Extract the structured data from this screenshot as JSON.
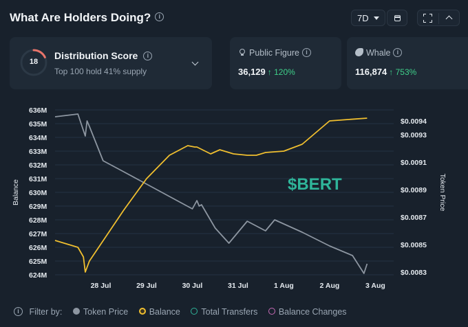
{
  "header": {
    "title": "What Are Holders Doing?",
    "period": "7D"
  },
  "score_card": {
    "score": "18",
    "score_fraction": 0.18,
    "label": "Distribution Score",
    "subtitle": "Top 100 hold 41% supply"
  },
  "public_figure": {
    "label": "Public Figure",
    "value": "36,129",
    "change": "↑ 120%"
  },
  "whale": {
    "label": "Whale",
    "value": "116,874",
    "change": "↑ 753%"
  },
  "chart_data": {
    "type": "line",
    "watermark": "$BERT",
    "x_tick_labels": [
      "28 Jul",
      "29 Jul",
      "30 Jul",
      "31 Jul",
      "1 Aug",
      "2 Aug",
      "3 Aug"
    ],
    "x_tick_index": [
      1,
      2,
      3,
      4,
      5,
      6,
      7
    ],
    "xlim": [
      0,
      7.4
    ],
    "y_left_label": "Balance",
    "y_left_ticks": [
      "624M",
      "625M",
      "626M",
      "627M",
      "628M",
      "629M",
      "630M",
      "631M",
      "632M",
      "633M",
      "634M",
      "635M",
      "636M"
    ],
    "y_left_lim": [
      624,
      636
    ],
    "y_right_label": "Token Price",
    "y_right_ticks": [
      "$0.0083",
      "$0.0085",
      "$0.0087",
      "$0.0089",
      "$0.0091",
      "$0.0093",
      "$0.0094"
    ],
    "y_right_lim": [
      0.00828,
      0.00948
    ],
    "grid": true,
    "series": [
      {
        "name": "Token Price",
        "color": "#8d96a1",
        "axis": "right",
        "x": [
          0,
          0.5,
          0.66,
          0.7,
          0.75,
          1.05,
          1.5,
          2.0,
          2.5,
          3.0,
          3.1,
          3.15,
          3.2,
          3.5,
          3.8,
          4.2,
          4.6,
          4.8,
          5.4,
          6.0,
          6.5,
          6.75,
          6.82
        ],
        "y": [
          0.00943,
          0.00945,
          0.00929,
          0.0094,
          0.00936,
          0.00911,
          0.00903,
          0.00894,
          0.00885,
          0.00876,
          0.00882,
          0.00878,
          0.00879,
          0.00862,
          0.00851,
          0.00867,
          0.0086,
          0.00868,
          0.00859,
          0.00849,
          0.00842,
          0.00829,
          0.00836
        ]
      },
      {
        "name": "Balance",
        "color": "#f0bf2f",
        "axis": "left",
        "x": [
          0,
          0.5,
          0.62,
          0.66,
          0.75,
          1.5,
          2.0,
          2.5,
          2.9,
          3.05,
          3.1,
          3.4,
          3.6,
          3.9,
          4.2,
          4.4,
          4.6,
          5.0,
          5.4,
          6.0,
          6.4,
          6.82
        ],
        "y": [
          626.5,
          626.0,
          625.3,
          624.2,
          625.0,
          628.7,
          631.0,
          632.7,
          633.4,
          633.3,
          633.3,
          632.8,
          633.1,
          632.8,
          632.7,
          632.7,
          632.9,
          633.0,
          633.5,
          635.2,
          635.3,
          635.4
        ]
      }
    ]
  },
  "filters": {
    "label": "Filter by:",
    "items": [
      {
        "label": "Token Price",
        "active": true
      },
      {
        "label": "Balance",
        "active": true
      },
      {
        "label": "Total Transfers",
        "active": false
      },
      {
        "label": "Balance Changes",
        "active": false
      }
    ]
  }
}
